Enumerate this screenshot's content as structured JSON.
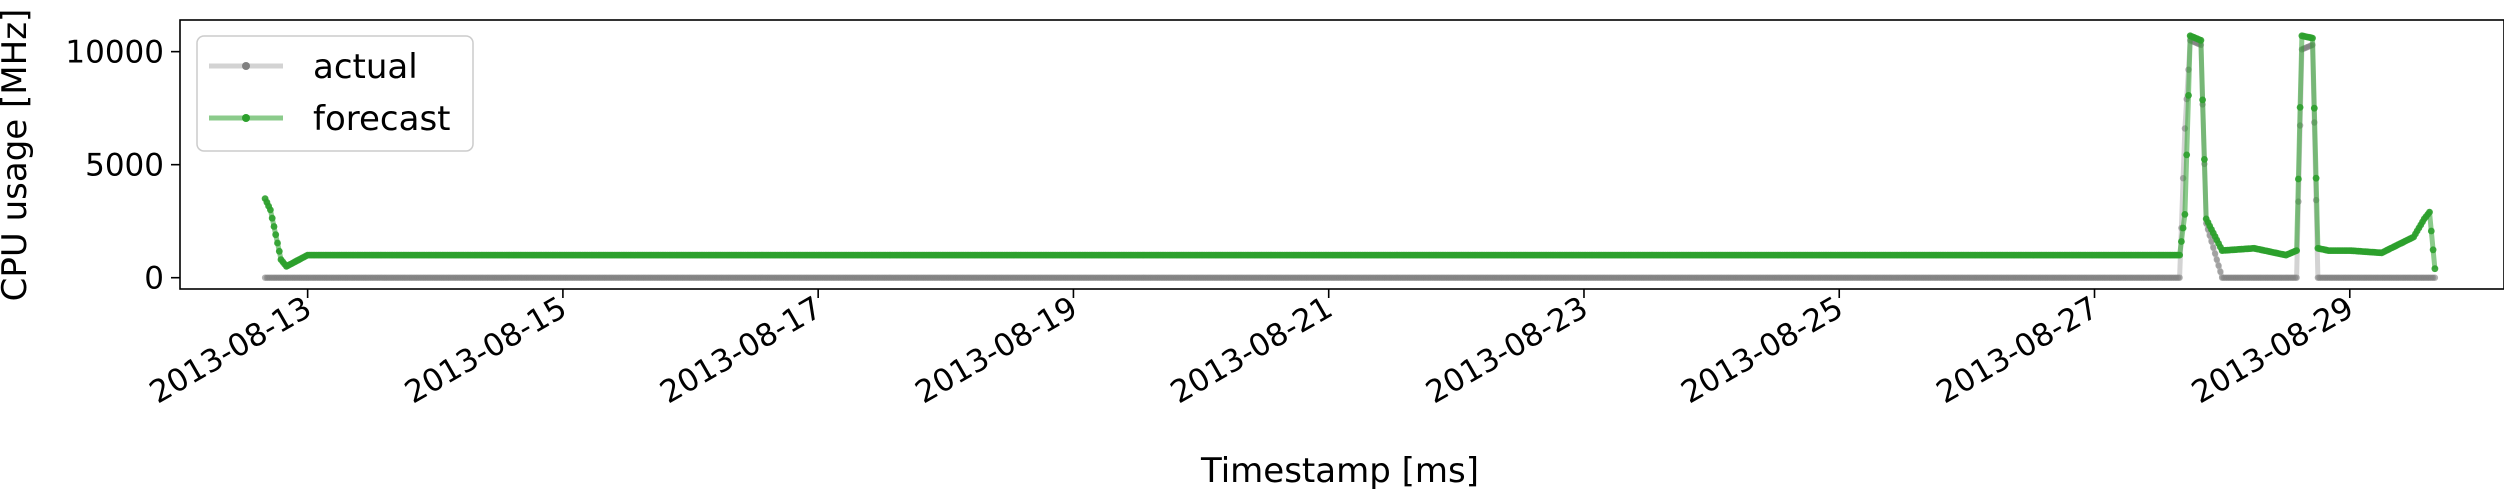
{
  "chart_data": {
    "type": "line",
    "xlabel": "Timestamp [ms]",
    "ylabel": "CPU usage [MHz]",
    "x_tick_labels": [
      "2013-08-13",
      "2013-08-15",
      "2013-08-17",
      "2013-08-19",
      "2013-08-21",
      "2013-08-23",
      "2013-08-25",
      "2013-08-27",
      "2013-08-29"
    ],
    "y_tick_labels": [
      "0",
      "5000",
      "10000"
    ],
    "xlim": [
      "2013-08-12T00:00",
      "2013-08-30T05:00"
    ],
    "ylim": [
      -500,
      11400
    ],
    "grid": false,
    "legend_position": "upper-left",
    "legend": [
      "actual",
      "forecast"
    ],
    "series": [
      {
        "name": "actual",
        "color": "#808080",
        "x": [
          "2013-08-12T16:00",
          "2013-08-13T00:00",
          "2013-08-16T00:00",
          "2013-08-20T00:00",
          "2013-08-24T00:00",
          "2013-08-27T12:00",
          "2013-08-27T16:00",
          "2013-08-27T17:00",
          "2013-08-27T18:00",
          "2013-08-27T20:00",
          "2013-08-27T21:00",
          "2013-08-28T00:00",
          "2013-08-28T12:00",
          "2013-08-28T14:00",
          "2013-08-28T15:00",
          "2013-08-28T17:00",
          "2013-08-28T18:00",
          "2013-08-29T00:00",
          "2013-08-29T12:00",
          "2013-08-29T16:00"
        ],
        "values": [
          0,
          0,
          0,
          0,
          0,
          0,
          0,
          6600,
          10500,
          10300,
          2400,
          0,
          0,
          0,
          10100,
          10300,
          0,
          0,
          0,
          0
        ]
      },
      {
        "name": "forecast",
        "color": "#2ca02c",
        "x": [
          "2013-08-12T16:00",
          "2013-08-12T17:00",
          "2013-08-12T18:00",
          "2013-08-12T19:00",
          "2013-08-12T20:00",
          "2013-08-13T00:00",
          "2013-08-16T00:00",
          "2013-08-20T00:00",
          "2013-08-24T00:00",
          "2013-08-27T12:00",
          "2013-08-27T16:00",
          "2013-08-27T17:00",
          "2013-08-27T18:00",
          "2013-08-27T20:00",
          "2013-08-27T21:00",
          "2013-08-28T00:00",
          "2013-08-28T06:00",
          "2013-08-28T12:00",
          "2013-08-28T14:00",
          "2013-08-28T15:00",
          "2013-08-28T17:00",
          "2013-08-28T18:00",
          "2013-08-28T20:00",
          "2013-08-29T00:00",
          "2013-08-29T06:00",
          "2013-08-29T12:00",
          "2013-08-29T14:00",
          "2013-08-29T15:00",
          "2013-08-29T16:00"
        ],
        "values": [
          3500,
          3000,
          1900,
          800,
          500,
          1000,
          1000,
          1000,
          1000,
          1000,
          1000,
          2800,
          10700,
          10500,
          2600,
          1200,
          1300,
          1000,
          1200,
          10700,
          10600,
          1300,
          1200,
          1200,
          1100,
          1800,
          2600,
          2900,
          400
        ]
      }
    ]
  }
}
